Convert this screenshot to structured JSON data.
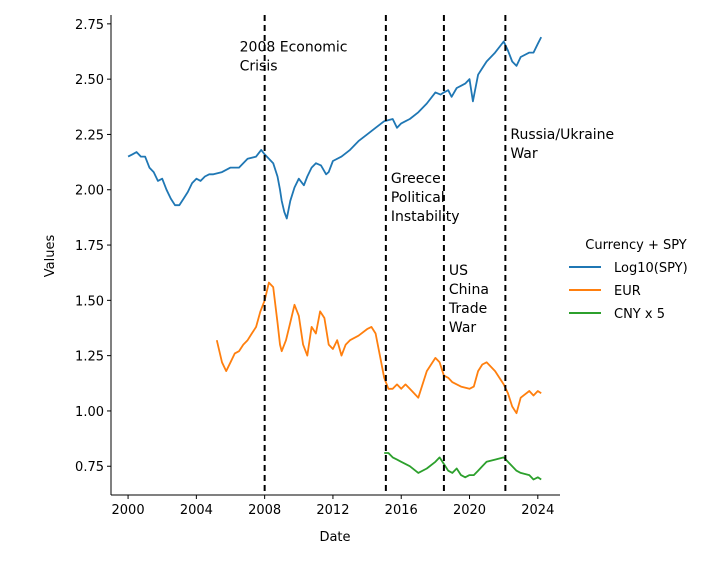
{
  "chart_data": {
    "type": "line",
    "xlabel": "Date",
    "ylabel": "Values",
    "xlim": [
      1999.0,
      2025.3
    ],
    "ylim": [
      0.62,
      2.79
    ],
    "x_ticks": [
      2000,
      2004,
      2008,
      2012,
      2016,
      2020,
      2024
    ],
    "x_tick_labels": [
      "2000",
      "2004",
      "2008",
      "2012",
      "2016",
      "2020",
      "2024"
    ],
    "y_ticks": [
      0.75,
      1.0,
      1.25,
      1.5,
      1.75,
      2.0,
      2.25,
      2.5,
      2.75
    ],
    "y_tick_labels": [
      "0.75",
      "1.00",
      "1.25",
      "1.50",
      "1.75",
      "2.00",
      "2.25",
      "2.50",
      "2.75"
    ],
    "grid": false,
    "legend": {
      "title": "Currency + SPY",
      "placement": "right, outside",
      "entries": [
        "Log10(SPY)",
        "EUR",
        "CNY x 5"
      ]
    },
    "series": [
      {
        "name": "Log10(SPY)",
        "color": "#1f77b4",
        "x": [
          2000.0,
          2000.25,
          2000.5,
          2000.75,
          2001.0,
          2001.25,
          2001.5,
          2001.75,
          2002.0,
          2002.25,
          2002.5,
          2002.75,
          2003.0,
          2003.25,
          2003.5,
          2003.75,
          2004.0,
          2004.25,
          2004.5,
          2004.75,
          2005.0,
          2005.5,
          2006.0,
          2006.5,
          2007.0,
          2007.5,
          2007.8,
          2008.0,
          2008.25,
          2008.5,
          2008.75,
          2008.9,
          2009.0,
          2009.15,
          2009.3,
          2009.5,
          2009.75,
          2010.0,
          2010.3,
          2010.5,
          2010.75,
          2011.0,
          2011.3,
          2011.6,
          2011.75,
          2012.0,
          2012.5,
          2013.0,
          2013.5,
          2014.0,
          2014.5,
          2015.0,
          2015.5,
          2015.75,
          2016.0,
          2016.25,
          2016.5,
          2017.0,
          2017.5,
          2018.0,
          2018.3,
          2018.5,
          2018.75,
          2018.95,
          2019.25,
          2019.5,
          2019.75,
          2020.0,
          2020.2,
          2020.35,
          2020.5,
          2020.75,
          2021.0,
          2021.5,
          2022.0,
          2022.25,
          2022.5,
          2022.75,
          2023.0,
          2023.5,
          2023.75,
          2024.0,
          2024.2
        ],
        "y": [
          2.15,
          2.16,
          2.17,
          2.15,
          2.15,
          2.1,
          2.08,
          2.04,
          2.05,
          2.0,
          1.96,
          1.93,
          1.93,
          1.96,
          1.99,
          2.03,
          2.05,
          2.04,
          2.06,
          2.07,
          2.07,
          2.08,
          2.1,
          2.1,
          2.14,
          2.15,
          2.18,
          2.16,
          2.14,
          2.12,
          2.06,
          2.0,
          1.95,
          1.9,
          1.87,
          1.95,
          2.01,
          2.05,
          2.02,
          2.06,
          2.1,
          2.12,
          2.11,
          2.07,
          2.08,
          2.13,
          2.15,
          2.18,
          2.22,
          2.25,
          2.28,
          2.31,
          2.32,
          2.28,
          2.3,
          2.31,
          2.32,
          2.35,
          2.39,
          2.44,
          2.43,
          2.44,
          2.45,
          2.42,
          2.46,
          2.47,
          2.48,
          2.5,
          2.4,
          2.46,
          2.52,
          2.55,
          2.58,
          2.62,
          2.67,
          2.63,
          2.58,
          2.56,
          2.6,
          2.62,
          2.62,
          2.66,
          2.69
        ]
      },
      {
        "name": "EUR",
        "color": "#ff7f0e",
        "x": [
          2005.2,
          2005.5,
          2005.75,
          2006.0,
          2006.25,
          2006.5,
          2006.75,
          2007.0,
          2007.25,
          2007.5,
          2007.75,
          2008.0,
          2008.25,
          2008.5,
          2008.75,
          2008.9,
          2009.0,
          2009.25,
          2009.5,
          2009.75,
          2010.0,
          2010.25,
          2010.5,
          2010.75,
          2011.0,
          2011.25,
          2011.5,
          2011.75,
          2012.0,
          2012.25,
          2012.5,
          2012.75,
          2013.0,
          2013.5,
          2014.0,
          2014.25,
          2014.5,
          2014.75,
          2015.0,
          2015.25,
          2015.5,
          2015.75,
          2016.0,
          2016.25,
          2016.5,
          2017.0,
          2017.5,
          2018.0,
          2018.25,
          2018.5,
          2018.75,
          2019.0,
          2019.5,
          2020.0,
          2020.25,
          2020.5,
          2020.75,
          2021.0,
          2021.5,
          2022.0,
          2022.25,
          2022.5,
          2022.75,
          2023.0,
          2023.5,
          2023.75,
          2024.0,
          2024.2
        ],
        "y": [
          1.32,
          1.22,
          1.18,
          1.22,
          1.26,
          1.27,
          1.3,
          1.32,
          1.35,
          1.38,
          1.45,
          1.5,
          1.58,
          1.56,
          1.4,
          1.3,
          1.27,
          1.32,
          1.4,
          1.48,
          1.43,
          1.3,
          1.25,
          1.38,
          1.35,
          1.45,
          1.42,
          1.3,
          1.28,
          1.32,
          1.25,
          1.3,
          1.32,
          1.34,
          1.37,
          1.38,
          1.35,
          1.25,
          1.15,
          1.1,
          1.1,
          1.12,
          1.1,
          1.12,
          1.1,
          1.06,
          1.18,
          1.24,
          1.22,
          1.16,
          1.15,
          1.13,
          1.11,
          1.1,
          1.11,
          1.18,
          1.21,
          1.22,
          1.18,
          1.12,
          1.08,
          1.02,
          0.99,
          1.06,
          1.09,
          1.07,
          1.09,
          1.08
        ]
      },
      {
        "name": "CNY x 5",
        "color": "#2ca02c",
        "x": [
          2015.0,
          2015.25,
          2015.5,
          2015.75,
          2016.0,
          2016.5,
          2017.0,
          2017.5,
          2018.0,
          2018.25,
          2018.5,
          2018.75,
          2019.0,
          2019.25,
          2019.5,
          2019.75,
          2020.0,
          2020.25,
          2020.5,
          2020.75,
          2021.0,
          2021.5,
          2022.0,
          2022.25,
          2022.5,
          2022.75,
          2023.0,
          2023.5,
          2023.75,
          2024.0,
          2024.2
        ],
        "y": [
          0.81,
          0.81,
          0.79,
          0.78,
          0.77,
          0.75,
          0.72,
          0.74,
          0.77,
          0.79,
          0.76,
          0.73,
          0.72,
          0.74,
          0.71,
          0.7,
          0.71,
          0.71,
          0.73,
          0.75,
          0.77,
          0.78,
          0.79,
          0.77,
          0.75,
          0.73,
          0.72,
          0.71,
          0.69,
          0.7,
          0.69
        ]
      }
    ],
    "events": [
      {
        "x": 2008.0,
        "label_lines": [
          "2008 Economic",
          "Crisis"
        ],
        "label_y": 2.625,
        "label_offset": -25
      },
      {
        "x": 2015.1,
        "label_lines": [
          "Greece",
          "Political",
          "Instability"
        ],
        "label_y": 2.03,
        "label_offset": 5
      },
      {
        "x": 2018.5,
        "label_lines": [
          "US",
          "China",
          "Trade",
          "War"
        ],
        "label_y": 1.615,
        "label_offset": 5
      },
      {
        "x": 2022.1,
        "label_lines": [
          "Russia/Ukraine",
          "War"
        ],
        "label_y": 2.23,
        "label_offset": 5
      }
    ]
  }
}
